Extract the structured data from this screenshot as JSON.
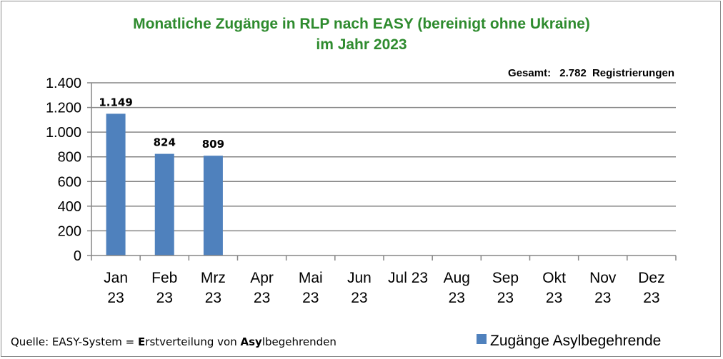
{
  "chart_data": {
    "type": "bar",
    "title_lines": [
      "Monatliche Zugänge in RLP nach EASY (bereinigt ohne Ukraine)",
      "im Jahr 2023"
    ],
    "total_note": {
      "label": "Gesamt:",
      "value": "2.782",
      "unit": "Registrierungen"
    },
    "categories": [
      [
        "Jan",
        "23"
      ],
      [
        "Feb",
        "23"
      ],
      [
        "Mrz",
        "23"
      ],
      [
        "Apr",
        "23"
      ],
      [
        "Mai",
        "23"
      ],
      [
        "Jun",
        "23"
      ],
      [
        "Jul 23",
        ""
      ],
      [
        "Aug",
        "23"
      ],
      [
        "Sep",
        "23"
      ],
      [
        "Okt",
        "23"
      ],
      [
        "Nov",
        "23"
      ],
      [
        "Dez",
        "23"
      ]
    ],
    "series": [
      {
        "name": "Zugänge Asylbegehrende",
        "color": "#4f81bd",
        "values": [
          1149,
          824,
          809,
          null,
          null,
          null,
          null,
          null,
          null,
          null,
          null,
          null
        ],
        "value_labels": [
          "1.149",
          "824",
          "809",
          "",
          "",
          "",
          "",
          "",
          "",
          "",
          "",
          ""
        ]
      }
    ],
    "y_ticks": [
      0,
      200,
      400,
      600,
      800,
      1000,
      1200,
      1400
    ],
    "y_tick_labels": [
      "0",
      "200",
      "400",
      "600",
      "800",
      "1.000",
      "1.200",
      "1.400"
    ],
    "ylim": [
      0,
      1400
    ],
    "grid": true,
    "legend_position": "bottom-right",
    "source_parts": [
      {
        "text": "Quelle: EASY-System = ",
        "bold": false
      },
      {
        "text": "E",
        "bold": true
      },
      {
        "text": "rstverteilung von ",
        "bold": false
      },
      {
        "text": "Asy",
        "bold": true
      },
      {
        "text": "lbegehrenden",
        "bold": false
      }
    ]
  }
}
